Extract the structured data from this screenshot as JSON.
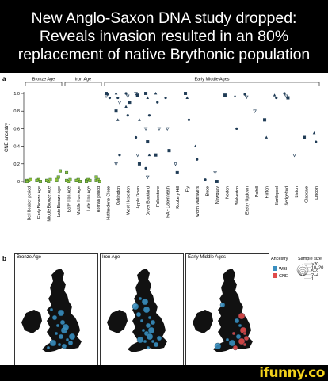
{
  "headline": {
    "line1": "New Anglo-Saxon DNA study dropped:",
    "line2": "Reveals invasion resulted in an 80%",
    "line3": "replacement of native Brythonic population"
  },
  "panel_a_label": "a",
  "panel_b_label": "b",
  "chart_data": {
    "type": "scatter",
    "ylabel": "CNE ancestry",
    "ylim": [
      0,
      1
    ],
    "yticks": [
      "0",
      "0.2",
      "0.4",
      "0.6",
      "0.8",
      "1.0"
    ],
    "groups": [
      "Bronze Age",
      "Iron Age",
      "Early Middle Ages"
    ],
    "categories": [
      "Bell Beaker period",
      "Early Bronze Age",
      "Middle Bronze Age",
      "Late Bronze Age",
      "Early Iron Age",
      "Middle Iron Age",
      "Late Iron Age",
      "Roman period",
      "Hatherdene Close",
      "Oakington",
      "West Heslerton",
      "Apple Down",
      "Dover Buckland",
      "Folkestone",
      "RAF Lakenheath",
      "Rookery Hill",
      "Ely",
      "Worth Matravers",
      "Bude",
      "Newquay",
      "Norton",
      "Wolverton",
      "Eastry Updown",
      "Polhill",
      "Hinton",
      "Hartlepool",
      "Sedgeford",
      "Linton",
      "Clapdale",
      "Lincoln"
    ],
    "approx_values": [
      [
        0.01,
        0.01,
        0.02,
        0.0
      ],
      [
        0.01,
        0.02,
        0.0,
        0.01
      ],
      [
        0.01,
        0.0,
        0.02,
        0.01
      ],
      [
        0.01,
        0.05,
        0.12,
        0.02
      ],
      [
        0.01,
        0.0,
        0.02,
        0.1
      ],
      [
        0.01,
        0.02,
        0.0,
        0.01
      ],
      [
        0.01,
        0.02,
        0.01,
        0.0
      ],
      [
        0.01,
        0.02,
        0.0,
        0.05
      ],
      [
        1.0,
        0.99,
        0.95,
        0.97
      ],
      [
        1.0,
        0.95,
        0.9,
        0.8,
        0.7,
        0.3,
        0.2
      ],
      [
        1.0,
        0.97,
        0.9,
        0.85,
        0.75
      ],
      [
        1.0,
        0.98,
        0.7,
        0.5,
        0.3,
        0.2
      ],
      [
        1.0,
        0.95,
        0.75,
        0.6,
        0.45,
        0.3,
        0.15,
        0.05
      ],
      [
        1.0,
        0.9,
        0.6,
        0.3
      ],
      [
        0.95,
        0.6,
        0.35
      ],
      [
        0.2,
        0.1
      ],
      [
        1.0,
        0.95,
        0.7
      ],
      [
        0.4,
        0.25
      ],
      [
        0.02
      ],
      [
        0.1,
        0.0
      ],
      [
        0.98
      ],
      [
        0.97,
        0.6
      ],
      [
        0.99,
        0.96
      ],
      [
        0.8
      ],
      [
        0.7,
        0.5
      ],
      [
        0.98,
        0.95
      ],
      [
        1.0,
        0.97,
        0.95
      ],
      [
        0.3
      ],
      [
        0.5
      ],
      [
        0.55,
        0.45
      ]
    ]
  },
  "maps": [
    {
      "title": "Bronze Age"
    },
    {
      "title": "Iron Age"
    },
    {
      "title": "Early Middle Ages"
    }
  ],
  "legend": {
    "ancestry_title": "Ancestry",
    "size_title": "Sample size",
    "wbi_label": "WBI",
    "cne_label": "CNE",
    "sizes": [
      ">20",
      "10–20",
      "5–9",
      "2–4",
      "1"
    ],
    "wbi_color": "#3a8fc0",
    "cne_color": "#e04a4a"
  },
  "watermark": "ifunny.co"
}
